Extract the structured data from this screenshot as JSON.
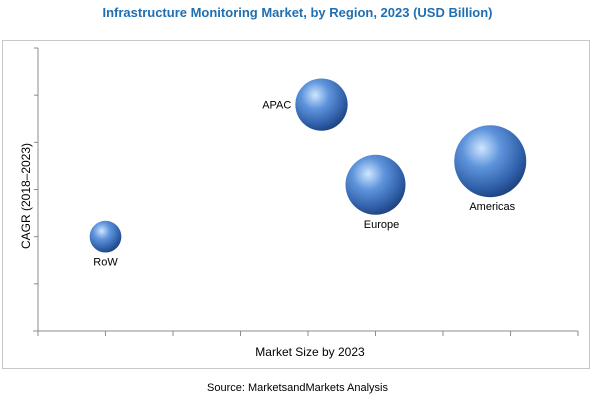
{
  "chart_data": {
    "type": "bubble",
    "title": "Infrastructure Monitoring Market, by Region, 2023 (USD Billion)",
    "xlabel": "Market Size by 2023",
    "ylabel": "CAGR (2018–2023)",
    "xlim": [
      0,
      8
    ],
    "ylim": [
      0,
      6
    ],
    "grid": false,
    "colors": {
      "bubble": "#3f78c6",
      "bubble_dark": "#1d3f78",
      "highlight": "#bfe0ff",
      "title": "#1f6fb2"
    },
    "series": [
      {
        "label": "RoW",
        "x": 1.0,
        "y": 2.0,
        "size": 0.7
      },
      {
        "label": "APAC",
        "x": 4.2,
        "y": 4.8,
        "size": 1.9
      },
      {
        "label": "Europe",
        "x": 5.0,
        "y": 3.1,
        "size": 2.5
      },
      {
        "label": "Americas",
        "x": 6.7,
        "y": 3.6,
        "size": 3.6
      }
    ]
  },
  "source": "Source: MarketsandMarkets Analysis"
}
